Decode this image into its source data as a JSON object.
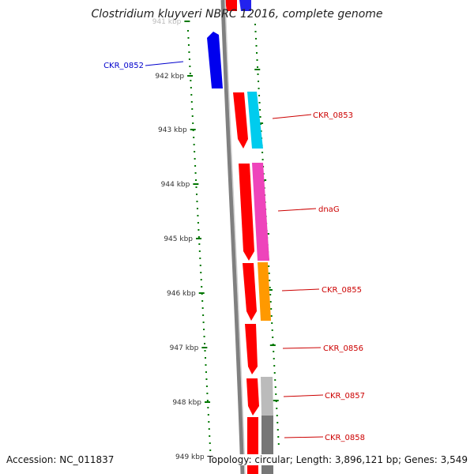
{
  "title": "Clostridium kluyveri NBRC 12016, complete genome",
  "footer": {
    "accession": "Accession: NC_011837",
    "summary": "Topology: circular; Length: 3,896,121 bp; Genes: 3,549"
  },
  "colors": {
    "forward_gene": "#ff0000",
    "reverse_gene": "#0000ee",
    "label_forward": "#cc0000",
    "label_reverse": "#0000cc",
    "kbp_ticks": "#007700",
    "backbone": "#808080"
  },
  "kbp_labels": [
    "941 kbp",
    "942 kbp",
    "943 kbp",
    "944 kbp",
    "945 kbp",
    "946 kbp",
    "947 kbp",
    "948 kbp",
    "949 kbp"
  ],
  "gene_labels": [
    {
      "text": "CKR_0852",
      "strand": "reverse"
    },
    {
      "text": "CKR_0853",
      "strand": "forward"
    },
    {
      "text": "dnaG",
      "strand": "forward"
    },
    {
      "text": "CKR_0855",
      "strand": "forward"
    },
    {
      "text": "CKR_0856",
      "strand": "forward"
    },
    {
      "text": "CKR_0857",
      "strand": "forward"
    },
    {
      "text": "CKR_0858",
      "strand": "forward"
    }
  ],
  "cog_colors": [
    "#00ccee",
    "#ee44bb",
    "#ff9900",
    "#bbbbbb",
    "#777777"
  ]
}
